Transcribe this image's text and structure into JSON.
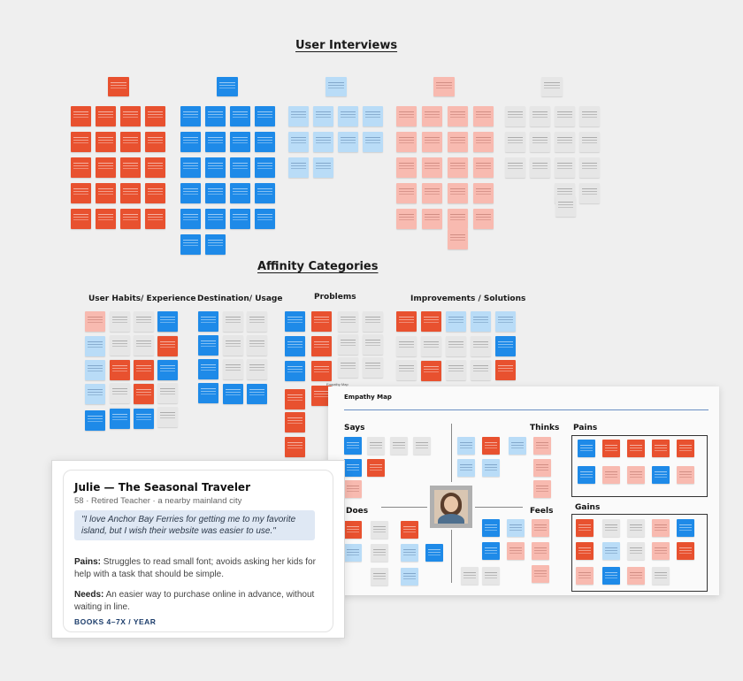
{
  "titles": {
    "user_interviews": "User Interviews",
    "affinity_categories": "Affinity Categories"
  },
  "affinity": {
    "user_habits": "User Habits/ Experience",
    "destination_usage": "Destination/ Usage",
    "problems": "Problems",
    "improvements": "Improvements / Solutions"
  },
  "empathy_map": {
    "frame_label": "Empathy Map",
    "title": "Empathy Map",
    "says": "Says",
    "thinks": "Thinks",
    "does": "Does",
    "feels": "Feels",
    "pains": "Pains",
    "gains": "Gains"
  },
  "persona": {
    "name": "Julie — The Seasonal Traveler",
    "meta": "58 · Retired Teacher · a nearby mainland city",
    "quote": "\"I love Anchor Bay Ferries for getting me to my favorite island, but I wish their website was easier to use.\"",
    "pains_label": "Pains:",
    "pains_text": "Struggles to read small font; avoids asking her kids for help with a task that should be simple.",
    "needs_label": "Needs:",
    "needs_text": "An easier way to purchase online in advance, without waiting in line.",
    "books": "BOOKS 4–7X / YEAR"
  },
  "colors": {
    "orange": "#e8512f",
    "blue": "#1e8ae8",
    "light_blue": "#b9dcf7",
    "pink": "#f8bab0",
    "gray": "#e6e6e6",
    "quote_bg": "#dfe8f4",
    "books_text": "#1c3d6b"
  }
}
